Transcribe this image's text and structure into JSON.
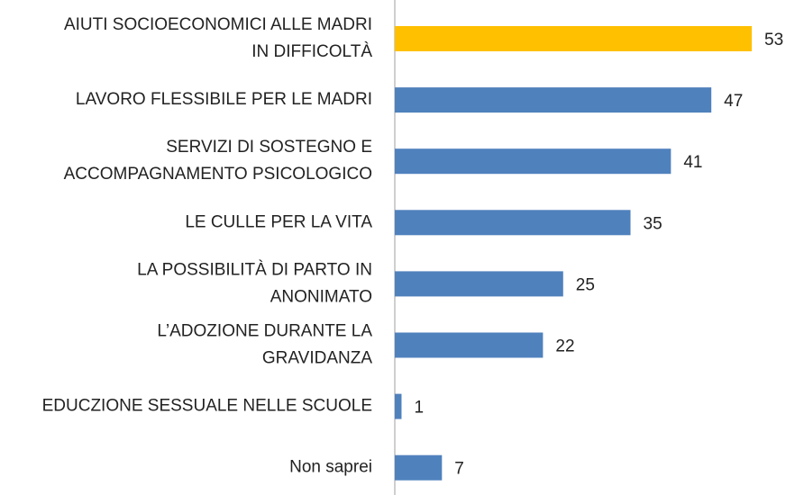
{
  "chart_data": {
    "type": "bar",
    "orientation": "horizontal",
    "categories": [
      [
        "AIUTI SOCIOECONOMICI ALLE MADRI",
        "IN DIFFICOLTÀ"
      ],
      [
        "LAVORO FLESSIBILE PER LE MADRI"
      ],
      [
        "SERVIZI DI SOSTEGNO E",
        "ACCOMPAGNAMENTO PSICOLOGICO"
      ],
      [
        "LE CULLE PER LA VITA"
      ],
      [
        "LA POSSIBILITÀ DI PARTO IN",
        "ANONIMATO"
      ],
      [
        "L’ADOZIONE DURANTE LA",
        "GRAVIDANZA"
      ],
      [
        "EDUCZIONE SESSUALE NELLE SCUOLE"
      ],
      [
        "Non saprei"
      ]
    ],
    "values": [
      53,
      47,
      41,
      35,
      25,
      22,
      1,
      7
    ],
    "colors": [
      "#ffc000",
      "#4f81bd",
      "#4f81bd",
      "#4f81bd",
      "#4f81bd",
      "#4f81bd",
      "#4f81bd",
      "#4f81bd"
    ]
  }
}
